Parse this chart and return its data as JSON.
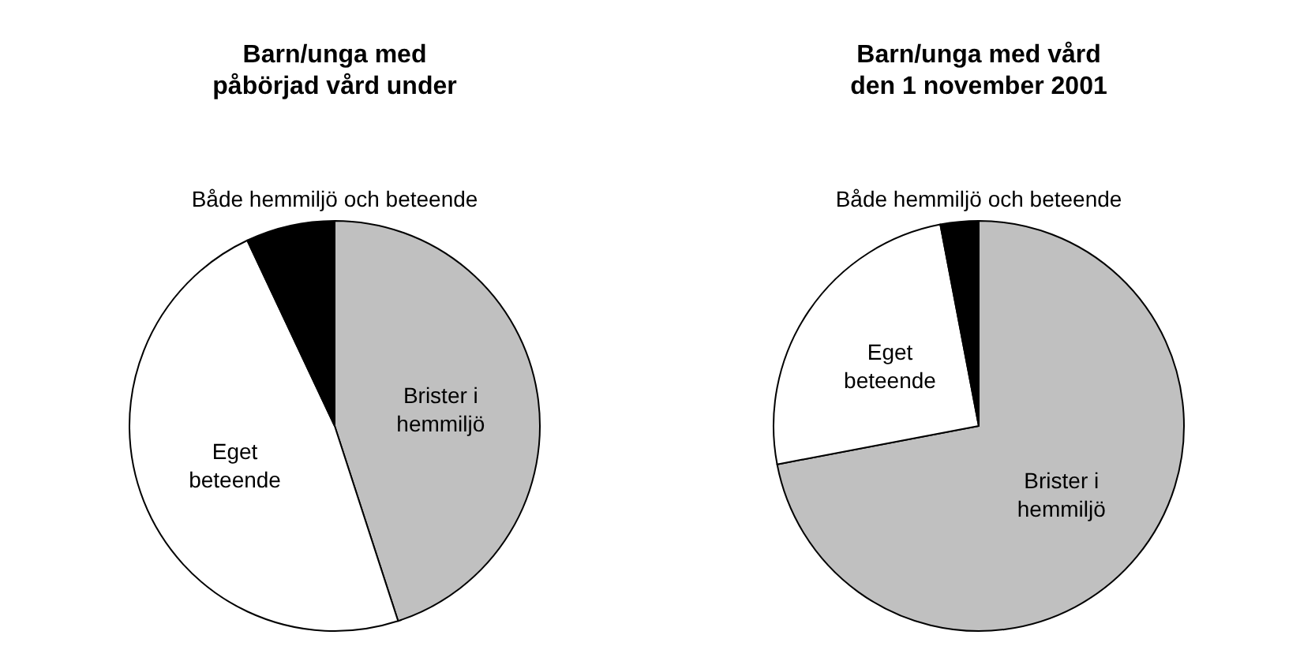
{
  "chart_data": [
    {
      "type": "pie",
      "title": "Barn/unga med\npåbörjad vård under",
      "categories": [
        "Brister i\nhemmiljö",
        "Eget\nbeteende",
        "Både hemmiljö och beteende"
      ],
      "values": [
        45,
        48,
        7
      ],
      "colors": [
        "#c0c0c0",
        "#ffffff",
        "#000000"
      ]
    },
    {
      "type": "pie",
      "title": "Barn/unga med vård\nden 1 november 2001",
      "categories": [
        "Brister i\nhemmiljö",
        "Eget\nbeteende",
        "Både hemmiljö och beteende"
      ],
      "values": [
        72,
        25,
        3
      ],
      "colors": [
        "#c0c0c0",
        "#ffffff",
        "#000000"
      ]
    }
  ]
}
